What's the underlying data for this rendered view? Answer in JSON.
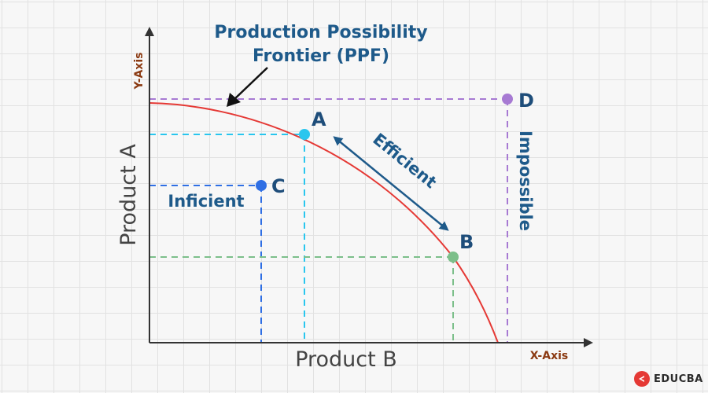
{
  "title": [
    "Production Possibility",
    "Frontier (PPF)"
  ],
  "axes": {
    "y_corner_label": "Y-Axis",
    "x_corner_label": "X-Axis",
    "y_label": "Product A",
    "x_label": "Product B"
  },
  "points": {
    "A": "A",
    "B": "B",
    "C": "C",
    "D": "D"
  },
  "annotations": {
    "efficient": "Efficient",
    "inefficient": "Inficient",
    "impossible": "Impossible"
  },
  "brand": {
    "name": "EDUCBA"
  },
  "colors": {
    "curve": "#e53935",
    "point_a": "#29c6ee",
    "point_b": "#7cbf8a",
    "point_c": "#2f6fe4",
    "point_d": "#a77ad3",
    "title": "#1e5a8a",
    "axis_corner": "#8b3a12",
    "efficient_arrow": "#1e5a8a"
  }
}
